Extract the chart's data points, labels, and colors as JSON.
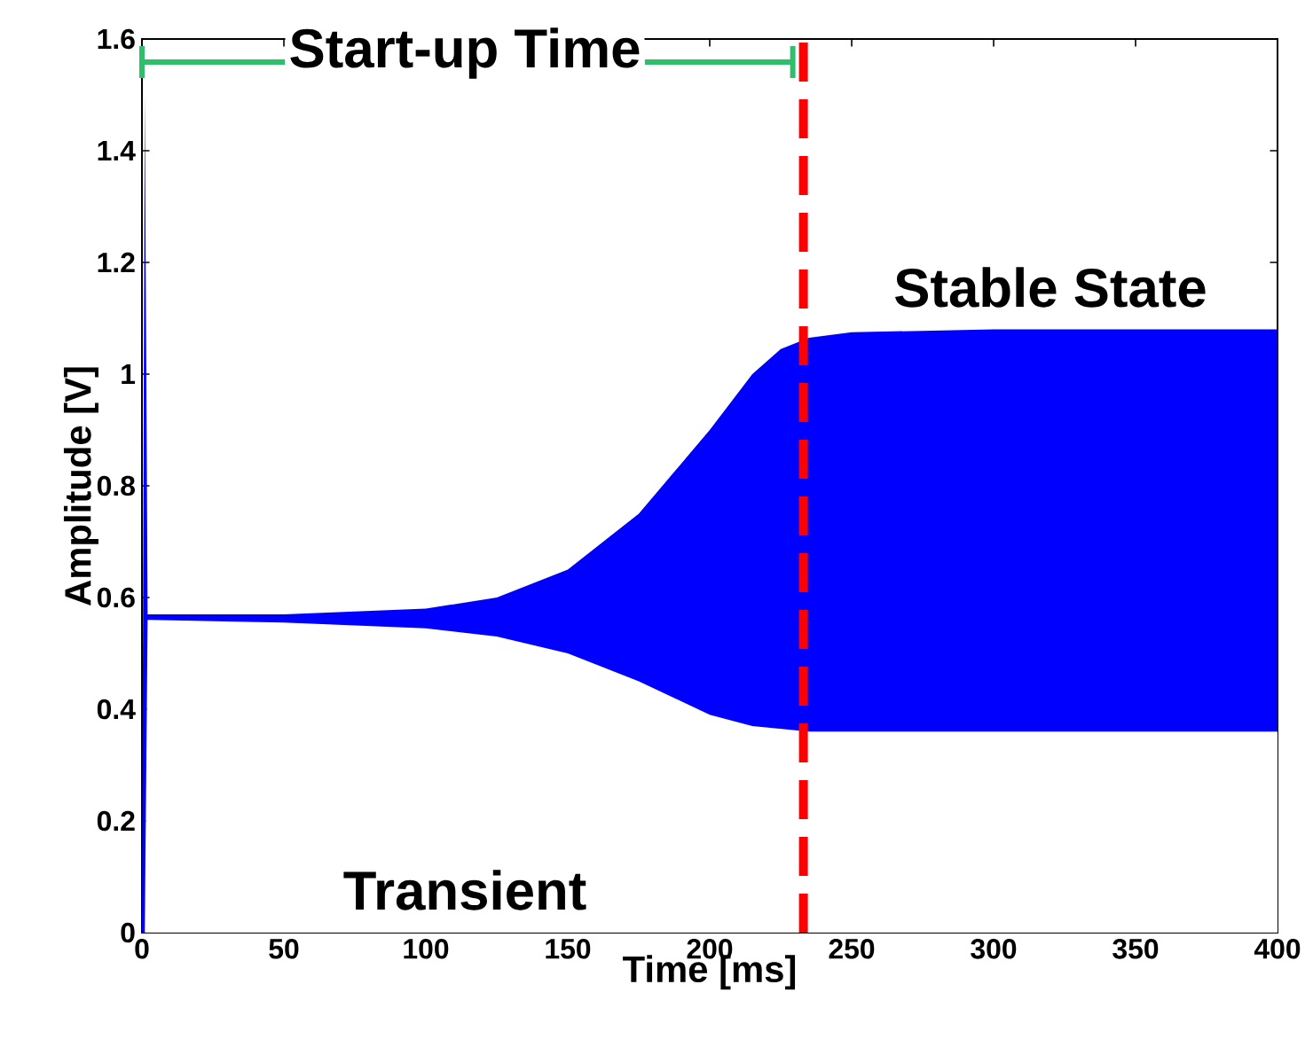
{
  "chart_data": {
    "type": "area",
    "xlabel": "Time [ms]",
    "ylabel": "Amplitude [V]",
    "stacked": true,
    "x": [
      0,
      1,
      2,
      3,
      50,
      100,
      125,
      150,
      175,
      200,
      215,
      225,
      235,
      250,
      300,
      400
    ],
    "series": [
      {
        "color": "#ffffff",
        "values": [
          0,
          0,
          0.56,
          0.56,
          0.555,
          0.545,
          0.53,
          0.5,
          0.45,
          0.39,
          0.37,
          0.365,
          0.36,
          0.36,
          0.36,
          0.36
        ]
      },
      {
        "color": "#0000ff",
        "values": [
          0,
          1.5,
          0.01,
          0.01,
          0.015,
          0.035,
          0.07,
          0.15,
          0.3,
          0.51,
          0.63,
          0.68,
          0.705,
          0.715,
          0.72,
          0.72
        ]
      }
    ],
    "xlim": [
      0,
      400
    ],
    "ylim": [
      0,
      1.6
    ],
    "xticks": [
      0,
      50,
      100,
      150,
      200,
      250,
      300,
      350,
      400
    ],
    "yticks": [
      0,
      0.2,
      0.4,
      0.6,
      0.8,
      1,
      1.2,
      1.4,
      1.6
    ],
    "ref_lines": [
      {
        "axis": "x",
        "value": 233,
        "color": "#ff0000",
        "line_style": "dashed"
      }
    ],
    "annotations": [
      "Start-up Time",
      "Stable State",
      "Transient"
    ],
    "grid": false
  }
}
